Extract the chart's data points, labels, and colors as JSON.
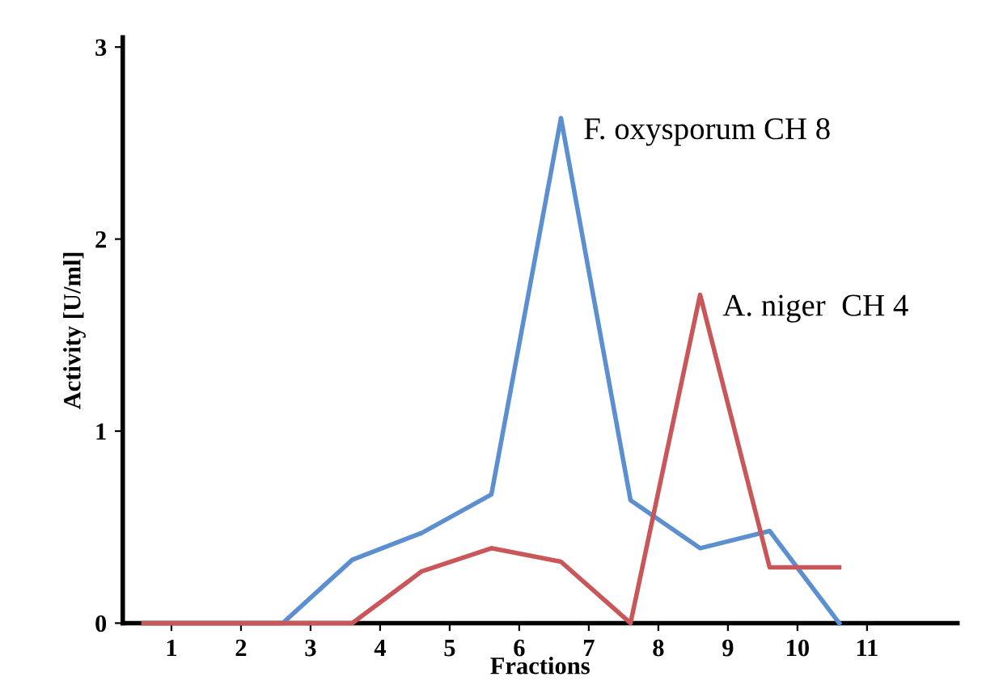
{
  "chart_data": {
    "type": "line",
    "xlabel": "Fractions",
    "ylabel": "Activity [U/ml]",
    "xlim": [
      0.3,
      12.3
    ],
    "xticks": [
      1,
      2,
      3,
      4,
      5,
      6,
      7,
      8,
      9,
      10,
      11
    ],
    "ylim": [
      0,
      3.05
    ],
    "yticks": [
      0,
      1,
      2,
      3
    ],
    "grid": false,
    "legend": false,
    "marker": "none",
    "series": [
      {
        "name": "F. oxysporum CH 8",
        "color": "#5b8fcf",
        "x": [
          0.6,
          2.6,
          3.6,
          4.6,
          5.6,
          6.6,
          7.6,
          8.6,
          9.6,
          10.6
        ],
        "values": [
          0,
          0,
          0.33,
          0.47,
          0.67,
          2.63,
          0.64,
          0.39,
          0.48,
          0
        ]
      },
      {
        "name": "A. niger  CH 4",
        "color": "#c9575a",
        "x": [
          0.6,
          3.6,
          4.6,
          5.6,
          6.6,
          7.6,
          8.6,
          9.6,
          10.6
        ],
        "values": [
          0,
          0,
          0.27,
          0.39,
          0.32,
          0,
          1.71,
          0.29,
          0.29
        ]
      }
    ]
  }
}
